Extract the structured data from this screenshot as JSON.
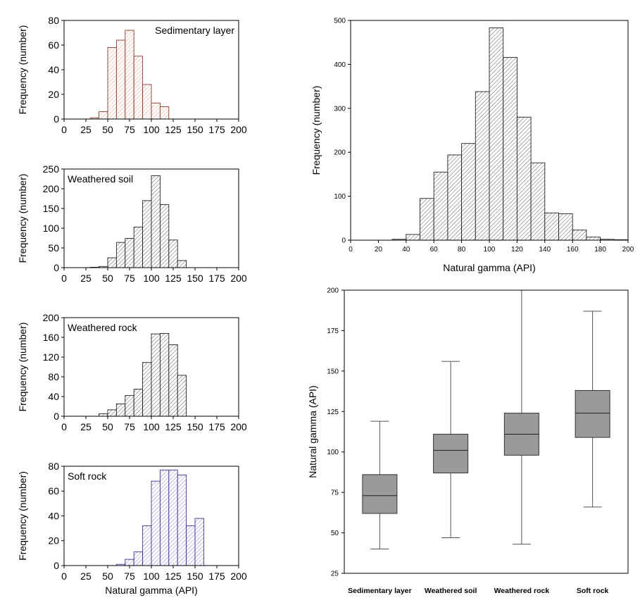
{
  "colors": {
    "sedimentary": "#e07a5f",
    "soft": "#6a5acd",
    "neutral": "#000000",
    "box_fill": "#9a9a9a"
  },
  "chart_data": [
    {
      "type": "bar",
      "title": "Sedimentary layer",
      "ylabel": "Frequency (number)",
      "xlabel": "",
      "bin_width": 10,
      "x_ticks": [
        0,
        25,
        50,
        75,
        100,
        125,
        150,
        175,
        200
      ],
      "y_ticks": [
        0,
        20,
        40,
        60,
        80
      ],
      "xlim": [
        0,
        200
      ],
      "ylim": [
        0,
        80
      ],
      "bins": [
        30,
        40,
        50,
        60,
        70,
        80,
        90,
        100,
        110
      ],
      "values": [
        1,
        6,
        58,
        64,
        72,
        51,
        28,
        13,
        10
      ],
      "color": "sedimentary"
    },
    {
      "type": "bar",
      "title": "Weathered soil",
      "ylabel": "Frequency (number)",
      "xlabel": "",
      "bin_width": 10,
      "x_ticks": [
        0,
        25,
        50,
        75,
        100,
        125,
        150,
        175,
        200
      ],
      "y_ticks": [
        0,
        50,
        100,
        150,
        200,
        250
      ],
      "xlim": [
        0,
        200
      ],
      "ylim": [
        0,
        250
      ],
      "bins": [
        30,
        40,
        50,
        60,
        70,
        80,
        90,
        100,
        110,
        120,
        130
      ],
      "values": [
        1,
        3,
        25,
        64,
        74,
        103,
        170,
        233,
        160,
        70,
        18
      ],
      "color": "neutral"
    },
    {
      "type": "bar",
      "title": "Weathered rock",
      "ylabel": "Frequency (number)",
      "xlabel": "",
      "bin_width": 10,
      "x_ticks": [
        0,
        25,
        50,
        75,
        100,
        125,
        150,
        175,
        200
      ],
      "y_ticks": [
        0,
        40,
        80,
        120,
        160,
        200
      ],
      "xlim": [
        0,
        200
      ],
      "ylim": [
        0,
        200
      ],
      "bins": [
        40,
        50,
        60,
        70,
        80,
        90,
        100,
        110,
        120,
        130
      ],
      "values": [
        5,
        13,
        25,
        42,
        55,
        109,
        167,
        168,
        145,
        83
      ],
      "color": "neutral"
    },
    {
      "type": "bar",
      "title": "Soft rock",
      "ylabel": "Frequency (number)",
      "xlabel": "Natural gamma (API)",
      "bin_width": 10,
      "x_ticks": [
        0,
        25,
        50,
        75,
        100,
        125,
        150,
        175,
        200
      ],
      "y_ticks": [
        0,
        20,
        40,
        60,
        80
      ],
      "xlim": [
        0,
        200
      ],
      "ylim": [
        0,
        80
      ],
      "bins": [
        60,
        70,
        80,
        90,
        100,
        110,
        120,
        130,
        140,
        150
      ],
      "values": [
        1,
        5,
        11,
        32,
        68,
        77,
        77,
        73,
        32,
        38
      ],
      "color": "soft"
    },
    {
      "type": "bar",
      "title": "",
      "ylabel": "Frequency (number)",
      "xlabel": "Natural gamma (API)",
      "bin_width": 10,
      "x_ticks": [
        0,
        20,
        40,
        60,
        80,
        100,
        120,
        140,
        160,
        180,
        200
      ],
      "y_ticks": [
        0,
        100,
        200,
        300,
        400,
        500
      ],
      "xlim": [
        0,
        200
      ],
      "ylim": [
        0,
        500
      ],
      "bins": [
        30,
        40,
        50,
        60,
        70,
        80,
        90,
        100,
        110,
        120,
        130,
        140,
        150,
        160,
        170,
        180,
        190
      ],
      "values": [
        2,
        13,
        95,
        155,
        194,
        220,
        338,
        483,
        416,
        280,
        176,
        62,
        60,
        23,
        7,
        2,
        1
      ],
      "color": "neutral"
    },
    {
      "type": "box",
      "title": "",
      "ylabel": "Natural gamma (API)",
      "xlabel": "",
      "y_ticks": [
        25,
        50,
        75,
        100,
        125,
        150,
        175,
        200
      ],
      "ylim": [
        25,
        200
      ],
      "categories": [
        "Sedimentary layer",
        "Weathered soil",
        "Weathered rock",
        "Soft rock"
      ],
      "boxes": [
        {
          "min": 40,
          "q1": 62,
          "median": 73,
          "q3": 86,
          "max": 119
        },
        {
          "min": 47,
          "q1": 87,
          "median": 101,
          "q3": 111,
          "max": 156
        },
        {
          "min": 43,
          "q1": 98,
          "median": 111,
          "q3": 124,
          "max": 200
        },
        {
          "min": 66,
          "q1": 109,
          "median": 124,
          "q3": 138,
          "max": 187
        }
      ]
    }
  ]
}
